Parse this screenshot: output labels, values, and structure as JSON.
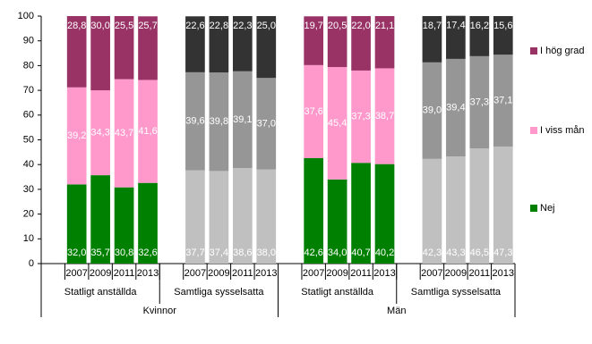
{
  "chart_data": {
    "type": "stacked-bar",
    "groups": [
      {
        "name": "Kvinnor",
        "subgroups": [
          {
            "name": "Statligt anställda",
            "categories": [
              "2007",
              "2009",
              "2011",
              "2013"
            ],
            "colors": [
              "#008000",
              "#ff99cc",
              "#993366"
            ]
          },
          {
            "name": "Samtliga sysselsatta",
            "categories": [
              "2007",
              "2009",
              "2011",
              "2013"
            ],
            "colors": [
              "#c0c0c0",
              "#969696",
              "#333333"
            ]
          }
        ]
      },
      {
        "name": "Män",
        "subgroups": [
          {
            "name": "Statligt anställda",
            "categories": [
              "2007",
              "2009",
              "2011",
              "2013"
            ],
            "colors": [
              "#008000",
              "#ff99cc",
              "#993366"
            ]
          },
          {
            "name": "Samtliga sysselsatta",
            "categories": [
              "2007",
              "2009",
              "2011",
              "2013"
            ],
            "colors": [
              "#c0c0c0",
              "#969696",
              "#333333"
            ]
          }
        ]
      }
    ],
    "series": [
      {
        "name": "Nej",
        "color": "#008000",
        "values": [
          32.0,
          35.7,
          30.8,
          32.6,
          37.7,
          37.4,
          38.6,
          38.0,
          42.6,
          34.0,
          40.7,
          40.2,
          42.3,
          43.3,
          46.5,
          47.3
        ],
        "value_labels": [
          "32,0",
          "35,7",
          "30,8",
          "32,6",
          "37,7",
          "37,4",
          "38,6",
          "38,0",
          "42,6",
          "34,0",
          "40,7",
          "40,2",
          "42,3",
          "43,3",
          "46,5",
          "47,3"
        ]
      },
      {
        "name": "I viss mån",
        "color": "#ff99cc",
        "values": [
          39.2,
          34.3,
          43.7,
          41.6,
          39.6,
          39.8,
          39.1,
          37.0,
          37.6,
          45.4,
          37.3,
          38.7,
          39.0,
          39.4,
          37.3,
          37.1
        ],
        "value_labels": [
          "39,2",
          "34,3",
          "43,7",
          "41,6",
          "39,6",
          "39,8",
          "39,1",
          "37,0",
          "37,6",
          "45,4",
          "37,3",
          "38,7",
          "39,0",
          "39,4",
          "37,3",
          "37,1"
        ]
      },
      {
        "name": "I hög grad",
        "color": "#993366",
        "values": [
          28.8,
          30.0,
          25.5,
          25.7,
          22.6,
          22.8,
          22.3,
          25.0,
          19.7,
          20.5,
          22.0,
          21.1,
          18.7,
          17.4,
          16.2,
          15.6
        ],
        "value_labels": [
          "28,8",
          "30,0",
          "25,5",
          "25,7",
          "22,6",
          "22,8",
          "22,3",
          "25,0",
          "19,7",
          "20,5",
          "22,0",
          "21,1",
          "18,7",
          "17,4",
          "16,2",
          "15,6"
        ]
      }
    ],
    "ylim": [
      0,
      100
    ],
    "yticks": [
      0,
      10,
      20,
      30,
      40,
      50,
      60,
      70,
      80,
      90,
      100
    ],
    "grid": false
  }
}
